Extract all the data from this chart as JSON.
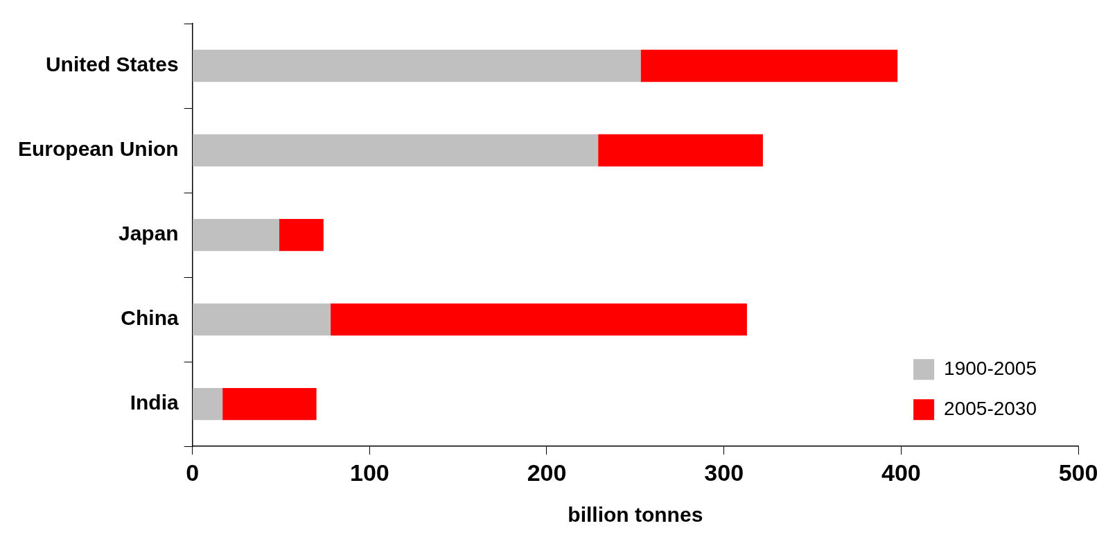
{
  "chart_data": {
    "type": "bar",
    "orientation": "horizontal",
    "stacked": true,
    "xlabel": "billion tonnes",
    "categories": [
      "United States",
      "European Union",
      "Japan",
      "China",
      "India"
    ],
    "series": [
      {
        "name": "1900-2005",
        "color": "#c0c0c0",
        "values": [
          253,
          229,
          49,
          78,
          17
        ]
      },
      {
        "name": "2005-2030",
        "color": "#ff0000",
        "values": [
          145,
          93,
          25,
          235,
          53
        ]
      }
    ],
    "xlim": [
      0,
      500
    ],
    "xticks": [
      0,
      100,
      200,
      300,
      400,
      500
    ],
    "grid": false,
    "legend": "bottom right"
  }
}
